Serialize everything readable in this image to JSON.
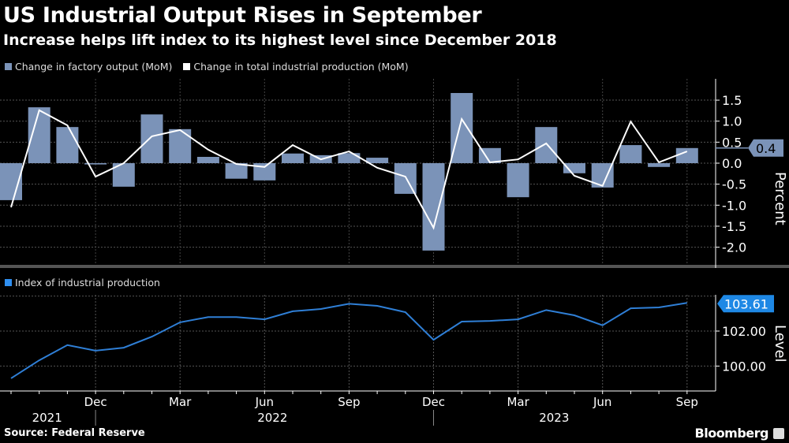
{
  "header": {
    "title": "US Industrial Output Rises in September",
    "subtitle": "Increase helps lift index to its highest level since December 2018"
  },
  "footer": {
    "source": "Source: Federal Reserve",
    "brand": "Bloomberg"
  },
  "colors": {
    "factory": "#7b93b8",
    "total": "#ffffff",
    "index": "#2f7fd6",
    "index_label_bg": "#1e88e5",
    "background": "#000000"
  },
  "chart_data": [
    {
      "type": "bar+line",
      "ylabel": "Percent",
      "ylim": [
        -2.4,
        1.9
      ],
      "yticks": [
        "1.5",
        "1.0",
        "0.5",
        "0.0",
        "-0.5",
        "-1.0",
        "-1.5",
        "-2.0"
      ],
      "grid": true,
      "legend_placement": "top-left",
      "x": [
        "2021-09",
        "2021-10",
        "2021-11",
        "2021-12",
        "2022-01",
        "2022-02",
        "2022-03",
        "2022-04",
        "2022-05",
        "2022-06",
        "2022-07",
        "2022-08",
        "2022-09",
        "2022-10",
        "2022-11",
        "2022-12",
        "2023-01",
        "2023-02",
        "2023-03",
        "2023-04",
        "2023-05",
        "2023-06",
        "2023-07",
        "2023-08",
        "2023-09"
      ],
      "series": [
        {
          "name": "Change in factory output (MoM)",
          "type": "bar",
          "values": [
            -0.88,
            1.33,
            0.86,
            -0.03,
            -0.56,
            1.16,
            0.81,
            0.15,
            -0.37,
            -0.41,
            0.23,
            0.19,
            0.24,
            0.13,
            -0.73,
            -2.08,
            1.67,
            0.36,
            -0.81,
            0.86,
            -0.24,
            -0.58,
            0.43,
            -0.09,
            0.36
          ]
        },
        {
          "name": "Change in total industrial production (MoM)",
          "type": "line",
          "values": [
            -1.05,
            1.26,
            0.9,
            -0.32,
            0.0,
            0.64,
            0.79,
            0.32,
            -0.02,
            -0.09,
            0.43,
            0.09,
            0.28,
            -0.11,
            -0.32,
            -1.54,
            1.05,
            0.02,
            0.09,
            0.47,
            -0.3,
            -0.54,
            0.99,
            0.02,
            0.28
          ]
        }
      ],
      "last_value_label": "0.4"
    },
    {
      "type": "line",
      "ylabel": "Level",
      "ylim": [
        98.6,
        104.0
      ],
      "yticks": [
        "102.00",
        "100.00"
      ],
      "grid": true,
      "legend_placement": "top-left",
      "series": [
        {
          "name": "Index of industrial production",
          "values": [
            99.3,
            100.33,
            101.2,
            100.88,
            101.05,
            101.68,
            102.5,
            102.8,
            102.8,
            102.67,
            103.13,
            103.26,
            103.56,
            103.44,
            103.08,
            101.5,
            102.54,
            102.58,
            102.67,
            103.2,
            102.9,
            102.33,
            103.3,
            103.35,
            103.61
          ]
        }
      ],
      "last_value_label": "103.61",
      "xtick_labels": [
        {
          "month": "Dec",
          "i": 3
        },
        {
          "month": "Mar",
          "i": 6
        },
        {
          "month": "Jun",
          "i": 9
        },
        {
          "month": "Sep",
          "i": 12
        },
        {
          "month": "Dec",
          "i": 15
        },
        {
          "month": "Mar",
          "i": 18
        },
        {
          "month": "Jun",
          "i": 21
        },
        {
          "month": "Sep",
          "i": 24
        }
      ],
      "year_labels": [
        {
          "year": "2021",
          "i": 1
        },
        {
          "year": "2022",
          "i": 9
        },
        {
          "year": "2023",
          "i": 19
        }
      ]
    }
  ]
}
